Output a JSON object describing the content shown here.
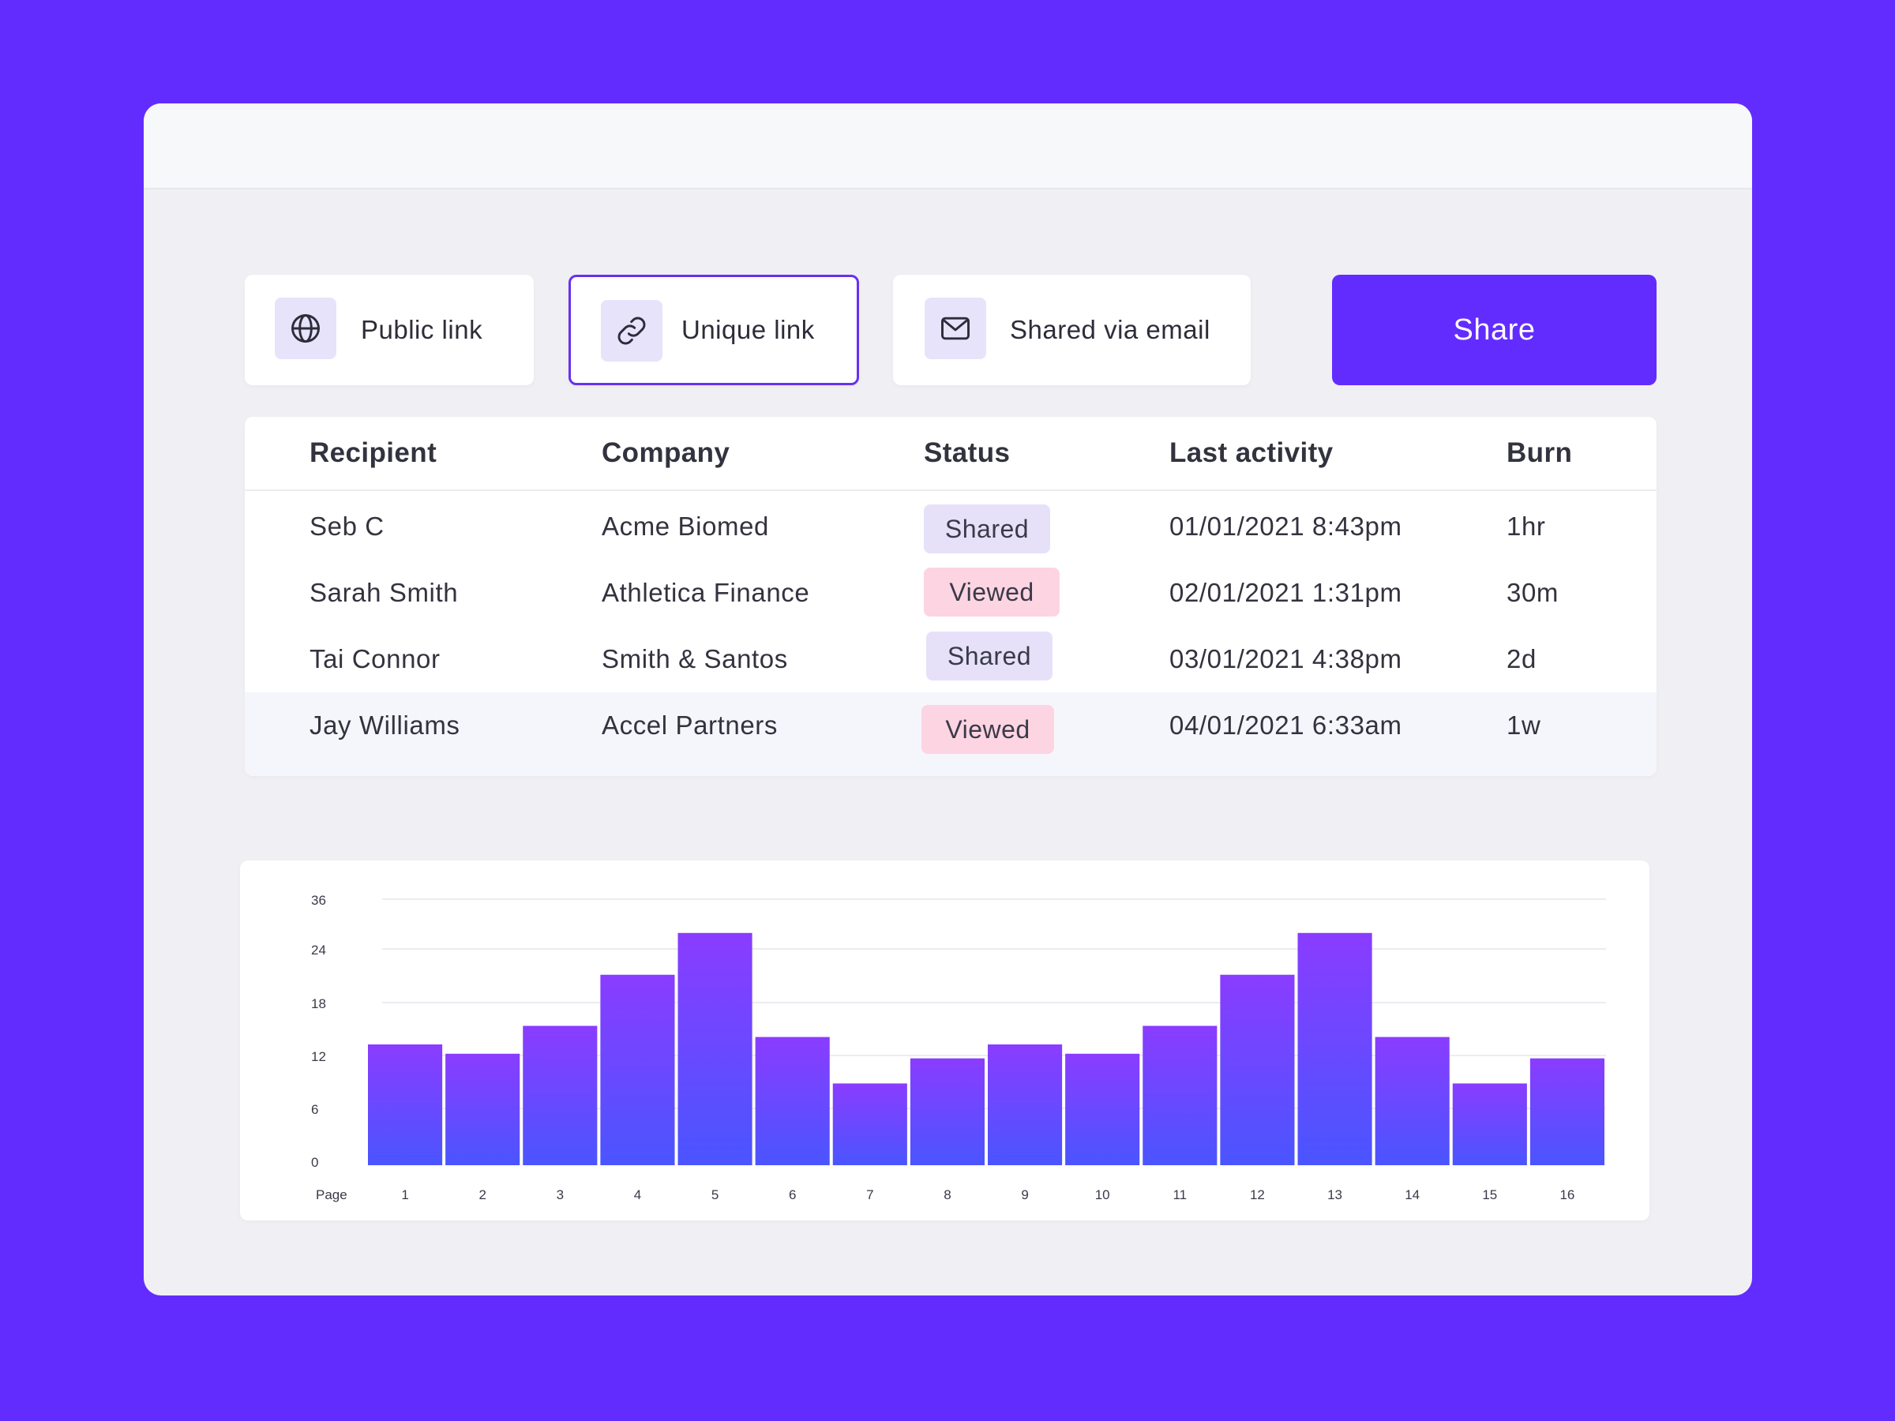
{
  "share_options": [
    {
      "label": "Public link",
      "icon": "globe-icon",
      "selected": false
    },
    {
      "label": "Unique link",
      "icon": "link-icon",
      "selected": true
    },
    {
      "label": "Shared via email",
      "icon": "envelope-icon",
      "selected": false
    }
  ],
  "share_button": {
    "label": "Share"
  },
  "table": {
    "headers": {
      "recipient": "Recipient",
      "company": "Company",
      "status": "Status",
      "last_activity": "Last activity",
      "burn": "Burn"
    },
    "rows": [
      {
        "recipient": "Seb C",
        "company": "Acme Biomed",
        "status": "Shared",
        "last_activity": "01/01/2021 8:43pm",
        "burn": "1hr"
      },
      {
        "recipient": "Sarah Smith",
        "company": "Athletica Finance",
        "status": "Viewed",
        "last_activity": "02/01/2021 1:31pm",
        "burn": "30m"
      },
      {
        "recipient": "Tai Connor",
        "company": "Smith & Santos",
        "status": "Shared",
        "last_activity": "03/01/2021 4:38pm",
        "burn": "2d"
      },
      {
        "recipient": "Jay Williams",
        "company": "Accel Partners",
        "status": "Viewed",
        "last_activity": "04/01/2021 6:33am",
        "burn": "1w"
      }
    ]
  },
  "colors": {
    "background": "#632cff",
    "accent": "#632cff",
    "selected_border": "#6a30f0",
    "shared_badge": "#e6e1f9",
    "viewed_badge": "#fdd4e2",
    "bar_top": "#8a3cff",
    "bar_bottom": "#4a55ff"
  },
  "chart_data": {
    "type": "bar",
    "xlabel": "Page",
    "ylabel": "",
    "y_ticks": [
      "0",
      "6",
      "12",
      "18",
      "24",
      "36"
    ],
    "categories": [
      "1",
      "2",
      "3",
      "4",
      "5",
      "6",
      "7",
      "8",
      "9",
      "10",
      "11",
      "12",
      "13",
      "14",
      "15",
      "16"
    ],
    "values": [
      13,
      12,
      15,
      20.5,
      25,
      13.8,
      8.8,
      11.5,
      13,
      12,
      15,
      20.5,
      25,
      13.8,
      8.8,
      11.5
    ],
    "grid": true,
    "legend": "none"
  }
}
